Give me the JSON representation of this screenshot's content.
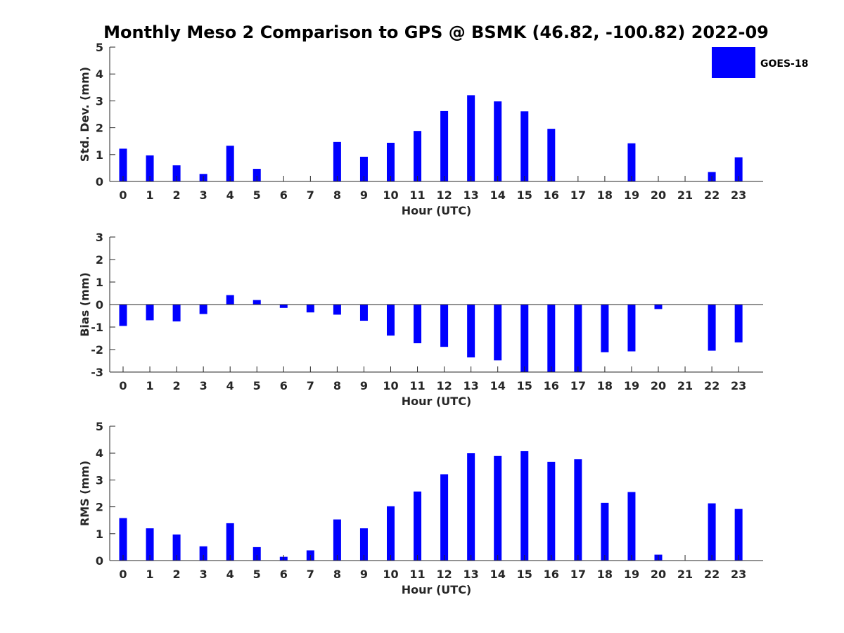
{
  "colors": {
    "bar": "#0000ff",
    "axis": "#262626",
    "background": "#ffffff"
  },
  "chart_data": [
    {
      "type": "bar",
      "title": "Monthly Meso 2 Comparison to GPS @ BSMK (46.82, -100.82) 2022-09",
      "xlabel": "Hour (UTC)",
      "ylabel": "Std. Dev. (mm)",
      "categories": [
        "0",
        "1",
        "2",
        "3",
        "4",
        "5",
        "6",
        "7",
        "8",
        "9",
        "10",
        "11",
        "12",
        "13",
        "14",
        "15",
        "16",
        "17",
        "18",
        "19",
        "20",
        "21",
        "22",
        "23"
      ],
      "series": [
        {
          "name": "GOES-18",
          "values": [
            1.22,
            0.97,
            0.6,
            0.28,
            1.33,
            0.47,
            null,
            null,
            1.47,
            0.92,
            1.44,
            1.88,
            2.62,
            3.21,
            2.98,
            2.61,
            1.96,
            null,
            null,
            1.42,
            null,
            null,
            0.35,
            0.9
          ]
        }
      ],
      "ylim": [
        0,
        5
      ],
      "yticks": [
        0,
        1,
        2,
        3,
        4,
        5
      ],
      "legend": {
        "entries": [
          "GOES-18"
        ],
        "placement": "top-right, outside"
      },
      "grid": false
    },
    {
      "type": "bar",
      "title": "",
      "xlabel": "Hour (UTC)",
      "ylabel": "Bias (mm)",
      "categories": [
        "0",
        "1",
        "2",
        "3",
        "4",
        "5",
        "6",
        "7",
        "8",
        "9",
        "10",
        "11",
        "12",
        "13",
        "14",
        "15",
        "16",
        "17",
        "18",
        "19",
        "20",
        "21",
        "22",
        "23"
      ],
      "series": [
        {
          "values": [
            -0.95,
            -0.7,
            -0.75,
            -0.42,
            0.42,
            0.2,
            -0.15,
            -0.35,
            -0.45,
            -0.72,
            -1.38,
            -1.72,
            -1.88,
            -2.35,
            -2.48,
            -3.0,
            -3.0,
            -3.0,
            -2.12,
            -2.08,
            -0.2,
            null,
            -2.05,
            -1.68
          ]
        }
      ],
      "ylim": [
        -3,
        3
      ],
      "yticks": [
        -3,
        -2,
        -1,
        0,
        1,
        2,
        3
      ],
      "grid": false
    },
    {
      "type": "bar",
      "title": "",
      "xlabel": "Hour (UTC)",
      "ylabel": "RMS (mm)",
      "categories": [
        "0",
        "1",
        "2",
        "3",
        "4",
        "5",
        "6",
        "7",
        "8",
        "9",
        "10",
        "11",
        "12",
        "13",
        "14",
        "15",
        "16",
        "17",
        "18",
        "19",
        "20",
        "21",
        "22",
        "23"
      ],
      "series": [
        {
          "values": [
            1.58,
            1.2,
            0.97,
            0.53,
            1.39,
            0.5,
            0.14,
            0.38,
            1.53,
            1.2,
            2.02,
            2.57,
            3.21,
            4.0,
            3.9,
            4.08,
            3.67,
            3.77,
            2.15,
            2.55,
            0.22,
            null,
            2.13,
            1.92
          ]
        }
      ],
      "ylim": [
        0,
        5
      ],
      "yticks": [
        0,
        1,
        2,
        3,
        4,
        5
      ],
      "grid": false
    }
  ]
}
